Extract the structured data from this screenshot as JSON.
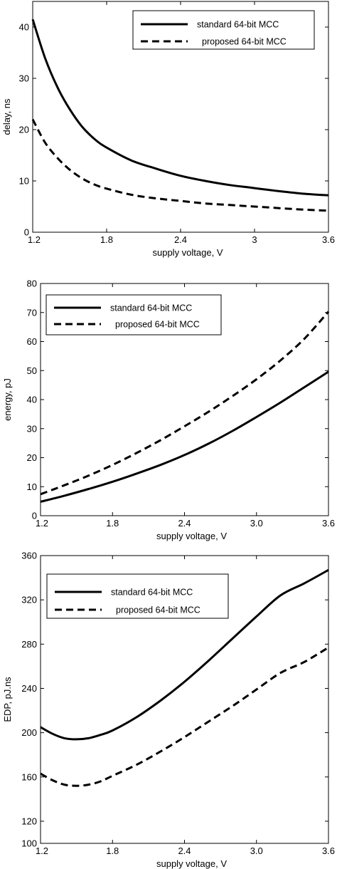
{
  "chart_data": [
    {
      "type": "line",
      "xlabel": "supply voltage, V",
      "ylabel": "delay, ns",
      "xlim": [
        1.2,
        3.6
      ],
      "ylim": [
        0,
        45
      ],
      "xticks": [
        "1.2",
        "1.8",
        "2.4",
        "3",
        "3.6"
      ],
      "yticks": [
        "0",
        "10",
        "20",
        "30",
        "40"
      ],
      "grid": false,
      "legend_position": "top-right",
      "x": [
        1.2,
        1.3,
        1.4,
        1.5,
        1.6,
        1.7,
        1.8,
        2.0,
        2.2,
        2.4,
        2.6,
        2.8,
        3.0,
        3.2,
        3.4,
        3.6
      ],
      "series": [
        {
          "name": "standard 64-bit MCC",
          "style": "solid",
          "values": [
            41.5,
            34.0,
            28.3,
            24.0,
            20.6,
            18.2,
            16.5,
            14.0,
            12.4,
            11.0,
            10.0,
            9.2,
            8.6,
            8.0,
            7.5,
            7.2
          ]
        },
        {
          "name": "proposed 64-bit MCC",
          "style": "dashed",
          "values": [
            22.0,
            17.5,
            14.5,
            12.2,
            10.5,
            9.3,
            8.5,
            7.3,
            6.6,
            6.1,
            5.6,
            5.3,
            5.0,
            4.7,
            4.4,
            4.2
          ]
        }
      ]
    },
    {
      "type": "line",
      "xlabel": "supply voltage, V",
      "ylabel": "energy, pJ",
      "xlim": [
        1.2,
        3.6
      ],
      "ylim": [
        0,
        80
      ],
      "xticks": [
        "1.2",
        "1.8",
        "2.4",
        "3.0",
        "3.6"
      ],
      "yticks": [
        "0",
        "10",
        "20",
        "30",
        "40",
        "50",
        "60",
        "70",
        "80"
      ],
      "grid": false,
      "legend_position": "top-left",
      "x": [
        1.2,
        1.4,
        1.6,
        1.8,
        2.0,
        2.2,
        2.4,
        2.6,
        2.8,
        3.0,
        3.2,
        3.4,
        3.6
      ],
      "series": [
        {
          "name": "standard 64-bit MCC",
          "style": "solid",
          "values": [
            4.8,
            6.9,
            9.2,
            11.7,
            14.5,
            17.5,
            20.9,
            24.8,
            29.2,
            34.0,
            39.0,
            44.3,
            49.6
          ]
        },
        {
          "name": "proposed 64-bit MCC",
          "style": "dashed",
          "values": [
            7.4,
            10.5,
            13.8,
            17.5,
            21.6,
            26.0,
            30.8,
            35.8,
            41.2,
            47.0,
            53.5,
            61.0,
            70.3
          ]
        }
      ]
    },
    {
      "type": "line",
      "xlabel": "supply voltage, V",
      "ylabel": "EDP, pJ.ns",
      "xlim": [
        1.2,
        3.6
      ],
      "ylim": [
        100,
        360
      ],
      "xticks": [
        "1.2",
        "1.8",
        "2.4",
        "3.0",
        "3.6"
      ],
      "yticks": [
        "100",
        "120",
        "160",
        "200",
        "240",
        "280",
        "320",
        "360"
      ],
      "grid": false,
      "legend_position": "top-left",
      "x": [
        1.2,
        1.3,
        1.4,
        1.5,
        1.6,
        1.7,
        1.8,
        2.0,
        2.2,
        2.4,
        2.6,
        2.8,
        3.0,
        3.2,
        3.4,
        3.6
      ],
      "series": [
        {
          "name": "standard 64-bit MCC",
          "style": "solid",
          "values": [
            205,
            199,
            195,
            194,
            195,
            198,
            202,
            214,
            229,
            246,
            265,
            285,
            305,
            324,
            335,
            347
          ]
        },
        {
          "name": "proposed 64-bit MCC",
          "style": "dashed",
          "values": [
            163,
            157,
            153,
            152,
            153,
            156,
            161,
            171,
            183,
            196,
            210,
            224,
            239,
            254,
            264,
            277
          ]
        }
      ]
    }
  ]
}
